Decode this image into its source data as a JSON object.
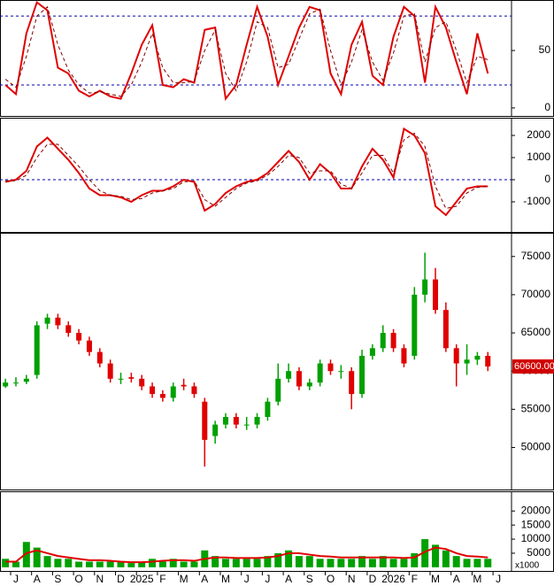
{
  "chart_data": [
    {
      "type": "line",
      "ylim": [
        -7,
        94
      ],
      "yticks": [
        0,
        50
      ],
      "levels": [
        20,
        80
      ],
      "x": [
        -0.5,
        0,
        0.5,
        1,
        1.5,
        2,
        2.5,
        3,
        3.5,
        4,
        4.5,
        5,
        5.5,
        6,
        6.5,
        7,
        7.5,
        8,
        8.5,
        9,
        9.5,
        10,
        10.5,
        11,
        11.5,
        12,
        12.5,
        13,
        13.5,
        14,
        14.5,
        15,
        15.5,
        16,
        16.5,
        17,
        17.5,
        18,
        18.5,
        19,
        19.5,
        20,
        20.5,
        21,
        21.5,
        22,
        22.5
      ],
      "series": [
        {
          "color": "#e00000",
          "dash": false,
          "values": [
            20,
            12,
            65,
            92,
            85,
            35,
            30,
            15,
            10,
            15,
            10,
            8,
            30,
            55,
            72,
            20,
            18,
            25,
            22,
            68,
            70,
            8,
            20,
            55,
            88,
            62,
            20,
            45,
            70,
            88,
            85,
            30,
            12,
            55,
            75,
            28,
            20,
            62,
            88,
            80,
            22,
            88,
            70,
            40,
            12,
            65,
            30
          ]
        },
        {
          "color": "#800000",
          "dash": true,
          "values": [
            25,
            18,
            45,
            80,
            88,
            55,
            33,
            20,
            13,
            14,
            12,
            10,
            20,
            40,
            65,
            35,
            22,
            22,
            23,
            50,
            68,
            30,
            15,
            40,
            75,
            70,
            35,
            38,
            60,
            82,
            86,
            50,
            20,
            40,
            68,
            40,
            24,
            48,
            80,
            82,
            40,
            70,
            75,
            50,
            22,
            45,
            42
          ]
        }
      ]
    },
    {
      "type": "line",
      "ylim": [
        -2360,
        2800
      ],
      "yticks": [
        -1000,
        0,
        1000,
        2000
      ],
      "levels": [
        0
      ],
      "x": [
        -0.5,
        0,
        0.5,
        1,
        1.5,
        2,
        2.5,
        3,
        3.5,
        4,
        4.5,
        5,
        5.5,
        6,
        6.5,
        7,
        7.5,
        8,
        8.5,
        9,
        9.5,
        10,
        10.5,
        11,
        11.5,
        12,
        12.5,
        13,
        13.5,
        14,
        14.5,
        15,
        15.5,
        16,
        16.5,
        17,
        17.5,
        18,
        18.5,
        19,
        19.5,
        20,
        20.5,
        21,
        21.5,
        22,
        22.5
      ],
      "series": [
        {
          "color": "#e00000",
          "dash": false,
          "values": [
            -100,
            0,
            400,
            1500,
            1900,
            1400,
            900,
            300,
            -400,
            -700,
            -700,
            -800,
            -1000,
            -700,
            -500,
            -500,
            -300,
            0,
            -100,
            -1400,
            -1100,
            -600,
            -300,
            -100,
            0,
            300,
            800,
            1300,
            800,
            0,
            700,
            300,
            -400,
            -400,
            600,
            1400,
            900,
            100,
            2300,
            2000,
            1200,
            -1200,
            -1600,
            -1000,
            -400,
            -300,
            -300
          ]
        },
        {
          "color": "#800000",
          "dash": true,
          "values": [
            -50,
            -50,
            200,
            1000,
            1600,
            1600,
            1100,
            600,
            0,
            -500,
            -700,
            -750,
            -900,
            -850,
            -600,
            -500,
            -400,
            -100,
            -50,
            -900,
            -1200,
            -800,
            -400,
            -150,
            -50,
            200,
            600,
            1100,
            1000,
            300,
            400,
            400,
            -200,
            -400,
            300,
            1100,
            1100,
            300,
            1800,
            2100,
            1500,
            -300,
            -1300,
            -1200,
            -600,
            -350,
            -300
          ]
        }
      ]
    },
    {
      "type": "candlestick",
      "ylim": [
        44500,
        78100
      ],
      "yticks": [
        50000,
        55000,
        60000,
        65000,
        70000,
        75000
      ],
      "last_price_label": "60600.00",
      "up_color": "#00a000",
      "down_color": "#e00000",
      "x": [
        -0.5,
        0,
        0.5,
        1,
        1.5,
        2,
        2.5,
        3,
        3.5,
        4,
        4.5,
        5,
        5.5,
        6,
        6.5,
        7,
        7.5,
        8,
        8.5,
        9,
        9.5,
        10,
        10.5,
        11,
        11.5,
        12,
        12.5,
        13,
        13.5,
        14,
        14.5,
        15,
        15.5,
        16,
        16.5,
        17,
        17.5,
        18,
        18.5,
        19,
        19.5,
        20,
        20.5,
        21,
        21.5,
        22,
        22.5
      ],
      "open": [
        58000,
        58400,
        58600,
        59500,
        66200,
        67000,
        66000,
        65000,
        64000,
        62500,
        61000,
        59000,
        59200,
        59000,
        58000,
        57000,
        56500,
        58200,
        58000,
        56000,
        51500,
        53000,
        54000,
        53000,
        53000,
        54000,
        56000,
        59000,
        60000,
        58000,
        58500,
        61000,
        60000,
        60000,
        57000,
        62000,
        63000,
        65000,
        63000,
        62000,
        70000,
        72000,
        68000,
        63000,
        61000,
        61500,
        62000
      ],
      "high": [
        59000,
        59200,
        59500,
        66500,
        67500,
        67500,
        66500,
        65500,
        64500,
        63000,
        61500,
        59800,
        59800,
        59500,
        58500,
        57500,
        58500,
        59000,
        58500,
        56500,
        53500,
        54500,
        54500,
        54000,
        54500,
        56500,
        61000,
        61000,
        60500,
        59000,
        61500,
        61500,
        60800,
        60500,
        62800,
        63500,
        66000,
        65500,
        63500,
        71000,
        75500,
        73500,
        69000,
        63500,
        63500,
        62500,
        62500
      ],
      "low": [
        57800,
        58000,
        58300,
        59000,
        65500,
        65500,
        64500,
        63500,
        62000,
        60500,
        58500,
        58300,
        58500,
        57500,
        56500,
        56000,
        56000,
        57500,
        56500,
        47500,
        50500,
        52500,
        52500,
        52300,
        52500,
        53500,
        55500,
        58500,
        57500,
        57500,
        58000,
        59500,
        59000,
        55000,
        56500,
        61500,
        62500,
        62500,
        60500,
        61500,
        69000,
        67500,
        62500,
        58000,
        59500,
        60800,
        60000
      ],
      "close": [
        58500,
        58500,
        59000,
        66000,
        67000,
        66000,
        65000,
        64000,
        62500,
        61000,
        59000,
        59000,
        59000,
        58000,
        57000,
        56500,
        58000,
        58000,
        57000,
        51000,
        53000,
        54000,
        53000,
        53000,
        54000,
        56000,
        59000,
        60000,
        58000,
        58500,
        61000,
        60000,
        60000,
        57000,
        62000,
        63000,
        65000,
        63000,
        61000,
        70000,
        72000,
        68000,
        63000,
        61000,
        61500,
        62000,
        60600
      ]
    },
    {
      "type": "bar",
      "ylim": [
        -1300,
        27000
      ],
      "yticks": [
        5000,
        10000,
        15000,
        20000
      ],
      "unit_label": "x1000",
      "x": [
        -0.5,
        0,
        0.5,
        1,
        1.5,
        2,
        2.5,
        3,
        3.5,
        4,
        4.5,
        5,
        5.5,
        6,
        6.5,
        7,
        7.5,
        8,
        8.5,
        9,
        9.5,
        10,
        10.5,
        11,
        11.5,
        12,
        12.5,
        13,
        13.5,
        14,
        14.5,
        15,
        15.5,
        16,
        16.5,
        17,
        17.5,
        18,
        18.5,
        19,
        19.5,
        20,
        20.5,
        21,
        21.5,
        22,
        22.5
      ],
      "xticks": [
        {
          "value": 0,
          "label": "J"
        },
        {
          "value": 1,
          "label": "A"
        },
        {
          "value": 2,
          "label": "S"
        },
        {
          "value": 3,
          "label": "O"
        },
        {
          "value": 4,
          "label": "N"
        },
        {
          "value": 5,
          "label": "D"
        },
        {
          "value": 6,
          "label": "2025"
        },
        {
          "value": 7,
          "label": "F"
        },
        {
          "value": 8,
          "label": "M"
        },
        {
          "value": 9,
          "label": "A"
        },
        {
          "value": 10,
          "label": "M"
        },
        {
          "value": 11,
          "label": "J"
        },
        {
          "value": 12,
          "label": "J"
        },
        {
          "value": 13,
          "label": "A"
        },
        {
          "value": 14,
          "label": "S"
        },
        {
          "value": 15,
          "label": "O"
        },
        {
          "value": 16,
          "label": "N"
        },
        {
          "value": 17,
          "label": "D"
        },
        {
          "value": 18,
          "label": "2026"
        },
        {
          "value": 19,
          "label": "F"
        },
        {
          "value": 20,
          "label": "M"
        },
        {
          "value": 21,
          "label": "A"
        },
        {
          "value": 22,
          "label": "M"
        },
        {
          "value": 23,
          "label": "J"
        }
      ],
      "series": [
        {
          "type": "bar",
          "color": "#00a000",
          "values": [
            3000,
            2000,
            9000,
            7000,
            4000,
            3000,
            3000,
            2000,
            2000,
            2000,
            2000,
            2000,
            1500,
            2000,
            3000,
            2000,
            3000,
            2000,
            2000,
            6000,
            4000,
            3000,
            3000,
            3000,
            3000,
            4000,
            5000,
            6000,
            4000,
            4000,
            3000,
            3000,
            3000,
            3000,
            4000,
            3000,
            4000,
            3000,
            3000,
            5000,
            10000,
            8000,
            6000,
            4000,
            3000,
            3000,
            3000
          ]
        },
        {
          "type": "line",
          "color": "#e00000",
          "values": [
            2000,
            2000,
            5000,
            6000,
            5000,
            4000,
            3500,
            3000,
            2500,
            2500,
            2300,
            2000,
            1800,
            1800,
            2000,
            2300,
            2500,
            2500,
            2300,
            3000,
            3500,
            3500,
            3300,
            3300,
            3300,
            3500,
            4000,
            5000,
            5000,
            4500,
            4000,
            3800,
            3500,
            3500,
            3500,
            3500,
            3500,
            3500,
            3300,
            3500,
            5500,
            7000,
            6500,
            5000,
            4000,
            3800,
            3500
          ]
        }
      ]
    }
  ]
}
